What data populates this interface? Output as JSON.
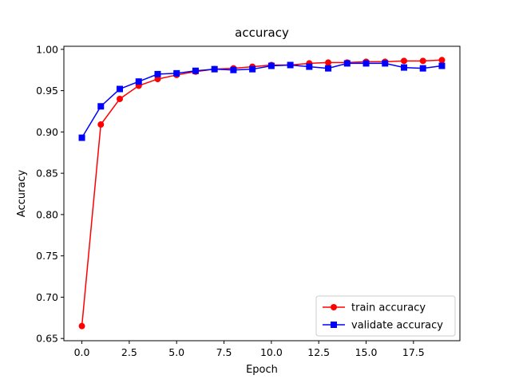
{
  "chart_data": {
    "type": "line",
    "title": "accuracy",
    "xlabel": "Epoch",
    "ylabel": "Accuracy",
    "xlim": [
      -0.95,
      19.95
    ],
    "ylim": [
      0.65,
      1.0
    ],
    "xticks": [
      "0.0",
      "2.5",
      "5.0",
      "7.5",
      "10.0",
      "12.5",
      "15.0",
      "17.5"
    ],
    "yticks": [
      "0.65",
      "0.70",
      "0.75",
      "0.80",
      "0.85",
      "0.90",
      "0.95",
      "1.00"
    ],
    "x": [
      0,
      1,
      2,
      3,
      4,
      5,
      6,
      7,
      8,
      9,
      10,
      11,
      12,
      13,
      14,
      15,
      16,
      17,
      18,
      19
    ],
    "series": [
      {
        "name": "train accuracy",
        "color": "#ff0000",
        "marker": "circle",
        "values": [
          0.665,
          0.909,
          0.94,
          0.956,
          0.964,
          0.969,
          0.973,
          0.976,
          0.977,
          0.979,
          0.981,
          0.981,
          0.983,
          0.984,
          0.984,
          0.985,
          0.985,
          0.986,
          0.986,
          0.987
        ]
      },
      {
        "name": "validate accuracy",
        "color": "#0000ff",
        "marker": "square",
        "values": [
          0.893,
          0.931,
          0.952,
          0.961,
          0.97,
          0.971,
          0.974,
          0.976,
          0.975,
          0.976,
          0.98,
          0.981,
          0.979,
          0.977,
          0.983,
          0.983,
          0.983,
          0.978,
          0.977,
          0.98
        ]
      }
    ],
    "legend_position": "lower-right",
    "grid": false
  }
}
